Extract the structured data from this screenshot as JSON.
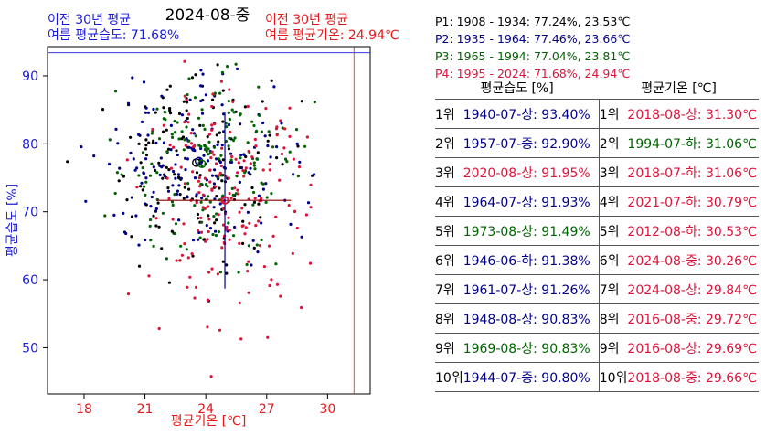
{
  "chart_data": {
    "type": "scatter",
    "title": "2024-08-중",
    "xlabel": "평균기온 [℃]",
    "ylabel": "평균습도 [%]",
    "xlim": [
      16.2,
      32.1
    ],
    "ylim": [
      43.2,
      94.3
    ],
    "xticks": [
      18,
      21,
      24,
      27,
      30
    ],
    "yticks": [
      50,
      60,
      70,
      80,
      90
    ],
    "top_left_note": [
      "이전 30년 평균",
      "여름 평균습도: 71.68%"
    ],
    "top_right_note": [
      "이전 30년 평균",
      "여름 평균기온: 24.94℃"
    ],
    "reference_lines": {
      "humidity": 93.4,
      "temperature": 31.3
    },
    "current_point": {
      "temperature": 24.94,
      "humidity": 71.68
    },
    "crosshair": {
      "h_from": 21.6,
      "h_to": 28.2,
      "v_from": 58.7,
      "v_to": 84.6
    },
    "series": [
      {
        "name": "P1: 1908 - 1934: 77.24%, 23.53℃",
        "color": "#000000",
        "mean_temp": 23.53,
        "mean_hum": 77.24,
        "sd_temp": 2.1,
        "sd_hum": 6.5,
        "n": 150
      },
      {
        "name": "P2: 1935 - 1964: 77.46%, 23.66℃",
        "color": "#00008b",
        "mean_temp": 23.66,
        "mean_hum": 77.46,
        "sd_temp": 2.4,
        "sd_hum": 7.0,
        "n": 170
      },
      {
        "name": "P3: 1965 - 1994: 77.04%, 23.81℃",
        "color": "#006400",
        "mean_temp": 23.81,
        "mean_hum": 77.04,
        "sd_temp": 2.3,
        "sd_hum": 6.8,
        "n": 170
      },
      {
        "name": "P4: 1995 - 2024: 71.68%, 24.94℃",
        "color": "#dc143c",
        "mean_temp": 24.94,
        "mean_hum": 71.68,
        "sd_temp": 2.0,
        "sd_hum": 7.8,
        "n": 180
      }
    ]
  },
  "colors": {
    "humidity": "#1a1adc",
    "temperature": "#e31a1c",
    "p1": "#000000",
    "p2": "#00008b",
    "p3": "#006400",
    "p4": "#dc143c"
  },
  "ranking": {
    "headers": [
      "평균습도 [%]",
      "평균기온 [℃]"
    ],
    "rows": [
      {
        "rank": "1위",
        "hum": "1940-07-상: 93.40%",
        "hum_period": "p2",
        "rank2": "1위",
        "temp": "2018-08-상: 31.30℃",
        "temp_period": "p4"
      },
      {
        "rank": "2위",
        "hum": "1957-07-중: 92.90%",
        "hum_period": "p2",
        "rank2": "2위",
        "temp": "1994-07-하: 31.06℃",
        "temp_period": "p3"
      },
      {
        "rank": "3위",
        "hum": "2020-08-상: 91.95%",
        "hum_period": "p4",
        "rank2": "3위",
        "temp": "2018-07-하: 31.06℃",
        "temp_period": "p4"
      },
      {
        "rank": "4위",
        "hum": "1964-07-상: 91.93%",
        "hum_period": "p2",
        "rank2": "4위",
        "temp": "2021-07-하: 30.79℃",
        "temp_period": "p4"
      },
      {
        "rank": "5위",
        "hum": "1973-08-상: 91.49%",
        "hum_period": "p3",
        "rank2": "5위",
        "temp": "2012-08-하: 30.53℃",
        "temp_period": "p4"
      },
      {
        "rank": "6위",
        "hum": "1946-06-하: 91.38%",
        "hum_period": "p2",
        "rank2": "6위",
        "temp": "2024-08-중: 30.26℃",
        "temp_period": "p4"
      },
      {
        "rank": "7위",
        "hum": "1961-07-상: 91.26%",
        "hum_period": "p2",
        "rank2": "7위",
        "temp": "2024-08-상: 29.84℃",
        "temp_period": "p4"
      },
      {
        "rank": "8위",
        "hum": "1948-08-상: 90.83%",
        "hum_period": "p2",
        "rank2": "8위",
        "temp": "2016-08-중: 29.72℃",
        "temp_period": "p4"
      },
      {
        "rank": "9위",
        "hum": "1969-08-상: 90.83%",
        "hum_period": "p3",
        "rank2": "9위",
        "temp": "2016-08-상: 29.69℃",
        "temp_period": "p4"
      },
      {
        "rank": "10위",
        "hum": "1944-07-중: 90.80%",
        "hum_period": "p2",
        "rank2": "10위",
        "temp": "2018-08-중: 29.66℃",
        "temp_period": "p4"
      }
    ]
  }
}
